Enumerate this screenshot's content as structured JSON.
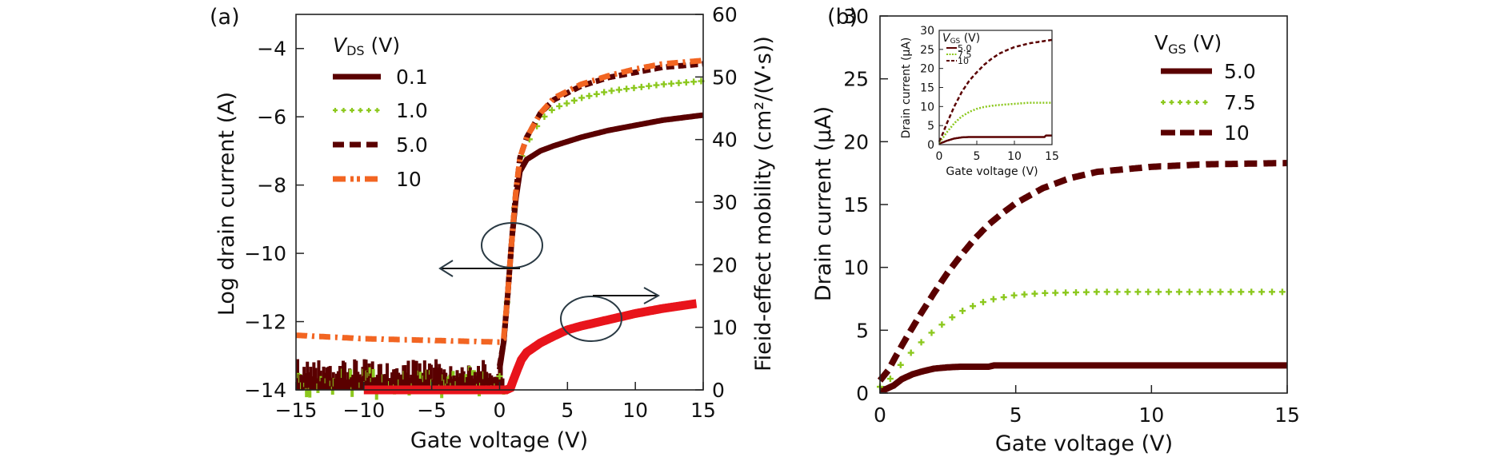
{
  "chart_data": [
    {
      "panel_label": "(a)",
      "type": "scatter",
      "xlabel": "Gate voltage (V)",
      "ylabel": "Log drain current (A)",
      "ylabel_right": "Fieid-effect mobility (cm²/(V·s))",
      "xlim": [
        -15,
        15
      ],
      "ylim": [
        -14,
        -3
      ],
      "ylim_right": [
        0,
        60
      ],
      "xticks": [
        -15,
        -10,
        -5,
        0,
        5,
        10,
        15
      ],
      "yticks": [
        -14,
        -12,
        -10,
        -8,
        -6,
        -4
      ],
      "yticks_right": [
        0,
        10,
        20,
        30,
        40,
        50,
        60
      ],
      "tick_labels": {
        "x": [
          "−15",
          "−10",
          "−5",
          "0",
          "5",
          "10",
          "15"
        ],
        "y": [
          "−14",
          "−12",
          "−10",
          "−8",
          "−6",
          "−4"
        ],
        "y_right": [
          "0",
          "10",
          "20",
          "30",
          "40",
          "50",
          "60"
        ]
      },
      "grid": false,
      "legend": {
        "title_main": "V",
        "title_sub": "DS",
        "title_unit": " (V)",
        "placement": "top-left",
        "entries": [
          "0.1",
          "1.0",
          "5.0",
          "10"
        ]
      },
      "series": [
        {
          "name": "0.1",
          "axis": "left",
          "style": "solid",
          "color": "#5a0000",
          "x": [
            -15,
            -10,
            -5,
            0,
            0.3,
            0.6,
            0.9,
            1.2,
            1.5,
            2,
            3,
            4,
            6,
            8,
            10,
            12,
            15
          ],
          "y": [
            -13.5,
            -13.5,
            -13.5,
            -13.4,
            -12.6,
            -11.2,
            -9.6,
            -8.4,
            -7.6,
            -7.25,
            -7.0,
            -6.85,
            -6.6,
            -6.4,
            -6.25,
            -6.1,
            -5.95
          ]
        },
        {
          "name": "1.0",
          "axis": "left",
          "style": "plus",
          "color": "#8cc81e",
          "x": [
            -15,
            -10,
            -5,
            0,
            0.3,
            0.6,
            0.9,
            1.2,
            1.5,
            2,
            3,
            4,
            6,
            8,
            10,
            12,
            15
          ],
          "y": [
            -13.7,
            -13.7,
            -13.7,
            -13.6,
            -12.6,
            -11.2,
            -9.6,
            -8.2,
            -7.3,
            -6.8,
            -6.1,
            -5.75,
            -5.45,
            -5.25,
            -5.15,
            -5.05,
            -4.95
          ]
        },
        {
          "name": "5.0",
          "axis": "left",
          "style": "dashed",
          "color": "#5a0000",
          "x": [
            -15,
            -10,
            -5,
            0,
            0.3,
            0.6,
            0.9,
            1.2,
            1.5,
            2,
            3,
            4,
            6,
            8,
            10,
            12,
            15
          ],
          "y": [
            -13.4,
            -13.4,
            -13.4,
            -13.3,
            -12.6,
            -11.2,
            -9.6,
            -8.2,
            -7.2,
            -6.6,
            -5.9,
            -5.5,
            -5.1,
            -4.85,
            -4.7,
            -4.55,
            -4.45
          ]
        },
        {
          "name": "10",
          "axis": "left",
          "style": "dash-plus",
          "color": "#f26522",
          "x": [
            -15,
            -10,
            -5,
            0,
            0.3,
            0.6,
            0.9,
            1.2,
            1.5,
            2,
            3,
            4,
            6,
            8,
            10,
            12,
            15
          ],
          "y": [
            -12.4,
            -12.5,
            -12.55,
            -12.6,
            -12.5,
            -11.2,
            -9.6,
            -8.2,
            -7.2,
            -6.6,
            -5.9,
            -5.45,
            -5.05,
            -4.8,
            -4.6,
            -4.45,
            -4.35
          ]
        },
        {
          "name": "Mobility",
          "axis": "right",
          "style": "thick",
          "color": "#e8141b",
          "x": [
            -10,
            -5,
            0,
            0.5,
            0.8,
            1.0,
            1.3,
            1.6,
            2,
            3,
            4,
            5,
            6,
            8,
            10,
            12,
            14.5
          ],
          "y": [
            0,
            0,
            0,
            0,
            0.3,
            1.5,
            3.2,
            4.8,
            6,
            7.5,
            8.6,
            9.6,
            10.2,
            11.2,
            12.2,
            13.0,
            13.8
          ]
        }
      ],
      "annotations": [
        {
          "type": "ellipse-arrow",
          "direction": "left",
          "target_axis": "left",
          "at_x": 1.0,
          "at_y": -10.0
        },
        {
          "type": "ellipse-arrow",
          "direction": "right",
          "target_axis": "right",
          "at_x": 7.0,
          "at_y": 11
        }
      ]
    },
    {
      "panel_label": "(b)",
      "type": "line",
      "xlabel": "Gate voltage (V)",
      "ylabel": "Drain current (μA)",
      "xlim": [
        0,
        15
      ],
      "ylim": [
        0,
        30
      ],
      "xticks": [
        0,
        5,
        10,
        15
      ],
      "yticks": [
        0,
        5,
        10,
        15,
        20,
        25,
        30
      ],
      "tick_labels": {
        "x": [
          "0",
          "5",
          "10",
          "15"
        ],
        "y": [
          "0",
          "5",
          "10",
          "15",
          "20",
          "25",
          "30"
        ]
      },
      "grid": false,
      "legend": {
        "title_main": "V",
        "title_sub": "GS",
        "title_unit": " (V)",
        "placement": "top-right",
        "entries": [
          "5.0",
          "7.5",
          "10"
        ]
      },
      "series": [
        {
          "name": "5.0",
          "style": "solid",
          "color": "#5a0000",
          "x": [
            0,
            0.2,
            0.5,
            0.8,
            1.2,
            1.6,
            2.0,
            2.5,
            3,
            4,
            4.2,
            5,
            8,
            10,
            12,
            15
          ],
          "y": [
            0.3,
            0.3,
            0.6,
            1.1,
            1.5,
            1.75,
            1.95,
            2.05,
            2.1,
            2.1,
            2.2,
            2.2,
            2.2,
            2.2,
            2.2,
            2.2
          ]
        },
        {
          "name": "7.5",
          "style": "plus",
          "color": "#8cc81e",
          "x": [
            0,
            0.3,
            0.6,
            1.0,
            1.5,
            2.0,
            2.5,
            3.0,
            3.5,
            4.0,
            5.0,
            6.0,
            7.0,
            8.0,
            10,
            12,
            15
          ],
          "y": [
            0.5,
            0.9,
            1.8,
            2.9,
            4.0,
            5.0,
            5.8,
            6.5,
            7.0,
            7.4,
            7.8,
            7.95,
            8.0,
            8.05,
            8.05,
            8.05,
            8.05
          ]
        },
        {
          "name": "10",
          "style": "dashed",
          "color": "#5a0000",
          "x": [
            0,
            0.3,
            0.6,
            1.0,
            1.5,
            2.0,
            2.5,
            3.0,
            3.5,
            4.0,
            4.5,
            5.0,
            6.0,
            7.0,
            8.0,
            10,
            12,
            15
          ],
          "y": [
            1.0,
            1.8,
            3.0,
            4.5,
            6.3,
            8.0,
            9.6,
            11.0,
            12.3,
            13.4,
            14.3,
            15.1,
            16.3,
            17.1,
            17.6,
            18.0,
            18.2,
            18.3
          ]
        }
      ],
      "inset": {
        "type": "line",
        "xlabel": "Gate voltage (V)",
        "ylabel": "Drain current (μA)",
        "xlim": [
          0,
          15
        ],
        "ylim": [
          0,
          30
        ],
        "xticks": [
          0,
          5,
          10,
          15
        ],
        "yticks": [
          0,
          5,
          10,
          15,
          20,
          25,
          30
        ],
        "tick_labels": {
          "x": [
            "0",
            "5",
            "10",
            "15"
          ],
          "y": [
            "0",
            "5",
            "10",
            "15",
            "20",
            "25",
            "30"
          ]
        },
        "legend": {
          "title_main": "V",
          "title_sub": "GS",
          "title_unit": " (V)",
          "placement": "top-left",
          "entries": [
            "5.0",
            "7.5",
            "10"
          ]
        },
        "series": [
          {
            "name": "5.0",
            "style": "solid",
            "color": "#5a0000",
            "x": [
              0,
              0.5,
              1,
              2,
              3,
              4,
              6,
              8,
              10,
              12,
              14,
              14.2,
              15
            ],
            "y": [
              0.3,
              0.6,
              1.0,
              1.6,
              1.9,
              2.0,
              2.0,
              2.0,
              2.0,
              2.0,
              2.0,
              2.4,
              2.4
            ]
          },
          {
            "name": "7.5",
            "style": "dotted",
            "color": "#8cc81e",
            "x": [
              0,
              0.5,
              1,
              2,
              3,
              4,
              5,
              6,
              7,
              8,
              10,
              12,
              15
            ],
            "y": [
              0.5,
              1.8,
              3.2,
              5.6,
              7.4,
              8.6,
              9.4,
              9.9,
              10.2,
              10.4,
              10.7,
              11.0,
              11.0
            ]
          },
          {
            "name": "10",
            "style": "dashed",
            "color": "#5a0000",
            "x": [
              0,
              0.5,
              1,
              2,
              3,
              4,
              5,
              6,
              7,
              8,
              9,
              10,
              12,
              15
            ],
            "y": [
              0.8,
              3.0,
              5.5,
              10.0,
              13.8,
              16.8,
              19.0,
              21.0,
              22.6,
              23.9,
              24.8,
              25.6,
              26.6,
              27.5
            ]
          }
        ]
      }
    }
  ]
}
